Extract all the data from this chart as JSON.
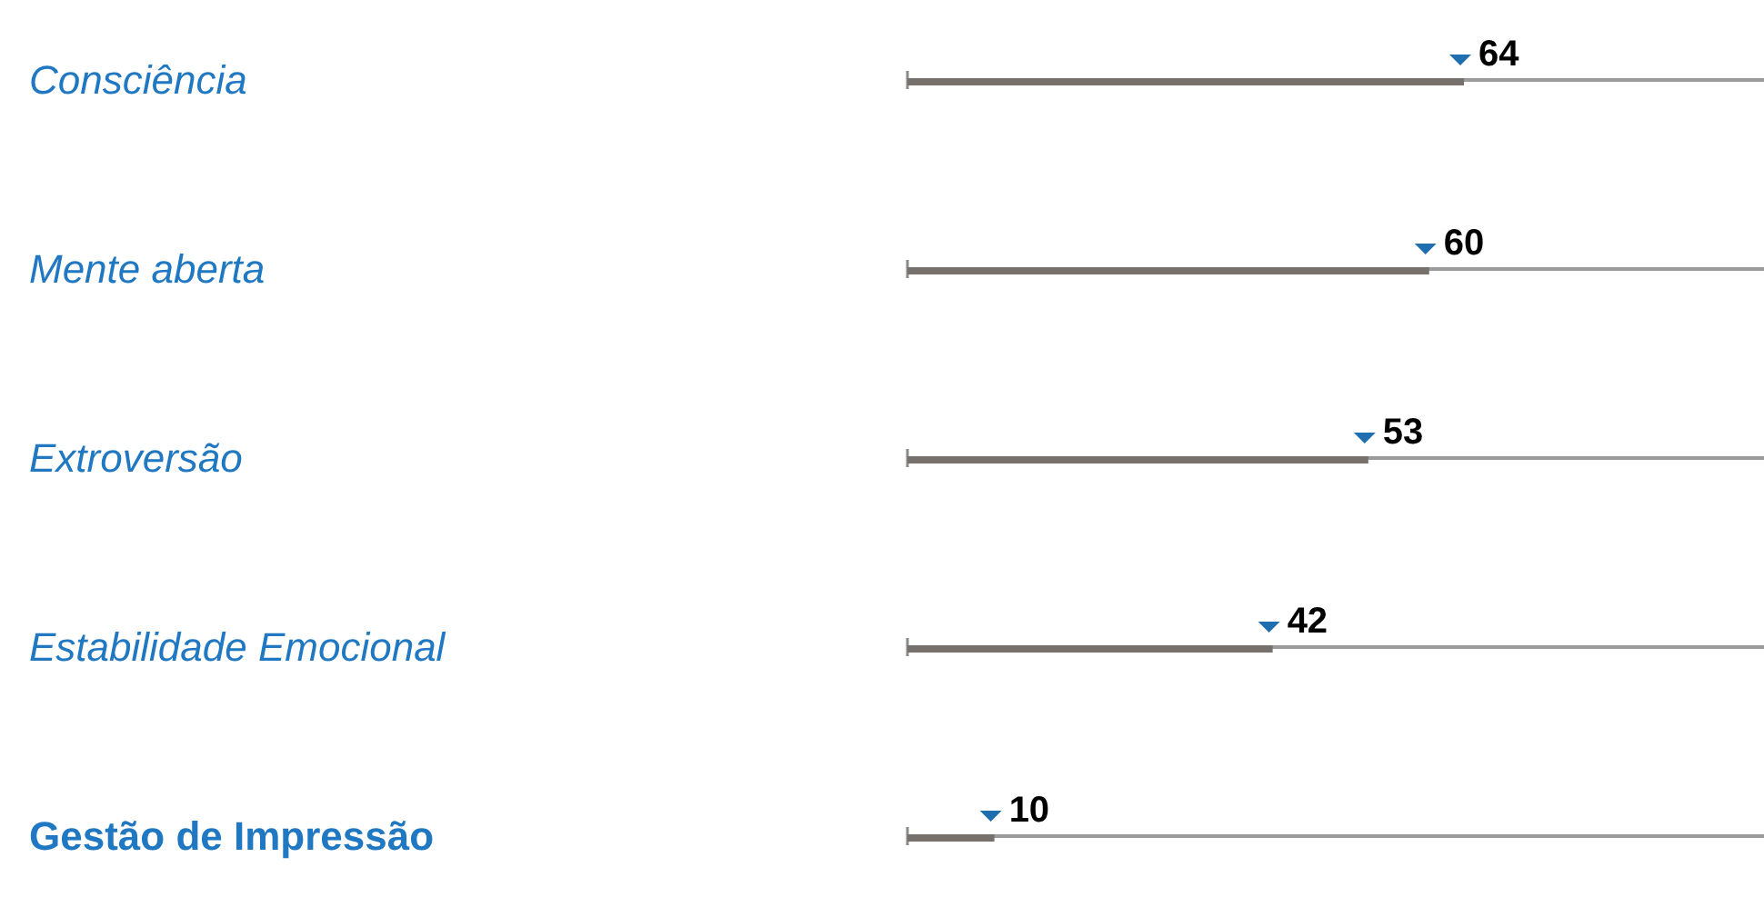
{
  "chart_data": {
    "type": "bar",
    "orientation": "horizontal",
    "categories": [
      "Consciência",
      "Mente aberta",
      "Extroversão",
      "Estabilidade Emocional",
      "Gestão de Impressão"
    ],
    "values": [
      64,
      60,
      53,
      42,
      10
    ],
    "color": "#76726b",
    "data_labels": true
  }
}
